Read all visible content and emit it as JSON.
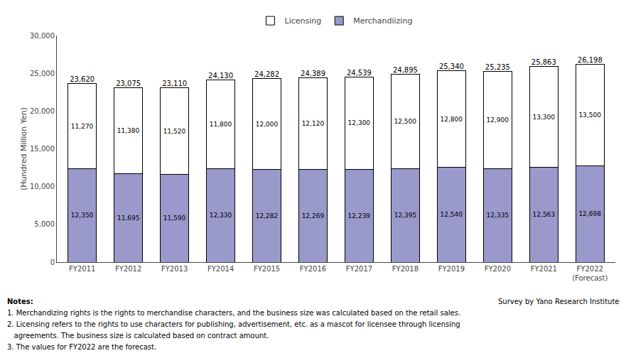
{
  "chart_data": {
    "type": "bar",
    "stacked": true,
    "categories": [
      "FY2011",
      "FY2012",
      "FY2013",
      "FY2014",
      "FY2015",
      "FY2016",
      "FY2017",
      "FY2018",
      "FY2019",
      "FY2020",
      "FY2021",
      "FY2022\n(Forecast)"
    ],
    "series": [
      {
        "name": "Merchandiizing",
        "color": "#9999cc",
        "values": [
          12350,
          11695,
          11590,
          12330,
          12282,
          12269,
          12239,
          12395,
          12540,
          12335,
          12563,
          12698
        ],
        "value_labels": [
          "12,350",
          "11,695",
          "11,590",
          "12,330",
          "12,282",
          "12,269",
          "12,239",
          "12,395",
          "12,540",
          "12,335",
          "12,563",
          "12,698"
        ]
      },
      {
        "name": "Licensing",
        "color": "#ffffff",
        "values": [
          11270,
          11380,
          11520,
          11800,
          12000,
          12120,
          12300,
          12500,
          12800,
          12900,
          13300,
          13500
        ],
        "value_labels": [
          "11,270",
          "11,380",
          "11,520",
          "11,800",
          "12,000",
          "12,120",
          "12,300",
          "12,500",
          "12,800",
          "12,900",
          "13,300",
          "13,500"
        ]
      }
    ],
    "totals": [
      23620,
      23075,
      23110,
      24130,
      24282,
      24389,
      24539,
      24895,
      25340,
      25235,
      25863,
      26198
    ],
    "total_labels": [
      "23,620",
      "23,075",
      "23,110",
      "24,130",
      "24,282",
      "24,389",
      "24,539",
      "24,895",
      "25,340",
      "25,235",
      "25,863",
      "26,198"
    ],
    "data_labels": true,
    "ylabel": "(Hundred Million Yen)",
    "ylim": [
      0,
      30000
    ],
    "yticks": [
      0,
      {
        "value": 5000,
        "label": "5,000"
      },
      {
        "value": 10000,
        "label": "10,000"
      },
      {
        "value": 15000,
        "label": "15,000"
      },
      {
        "value": 20000,
        "label": "20,000"
      },
      {
        "value": 25000,
        "label": "25,000"
      },
      {
        "value": 30000,
        "label": "30,000"
      }
    ],
    "grid": false,
    "legend": "top",
    "annotations": [
      "Notes:",
      "1. Merchandizing rights is the rights to merchandise characters, and the business size was calculated based on the retail sales.",
      "2. Licensing refers to the rights to use characters for publishing, advertisement, etc. as a mascot for licensee through licensing",
      "   agreements. The business size is calculated based on contract amount.",
      "3. The values for FY2022 are the forecast."
    ],
    "source": "Survey by Yano Research Institute"
  }
}
